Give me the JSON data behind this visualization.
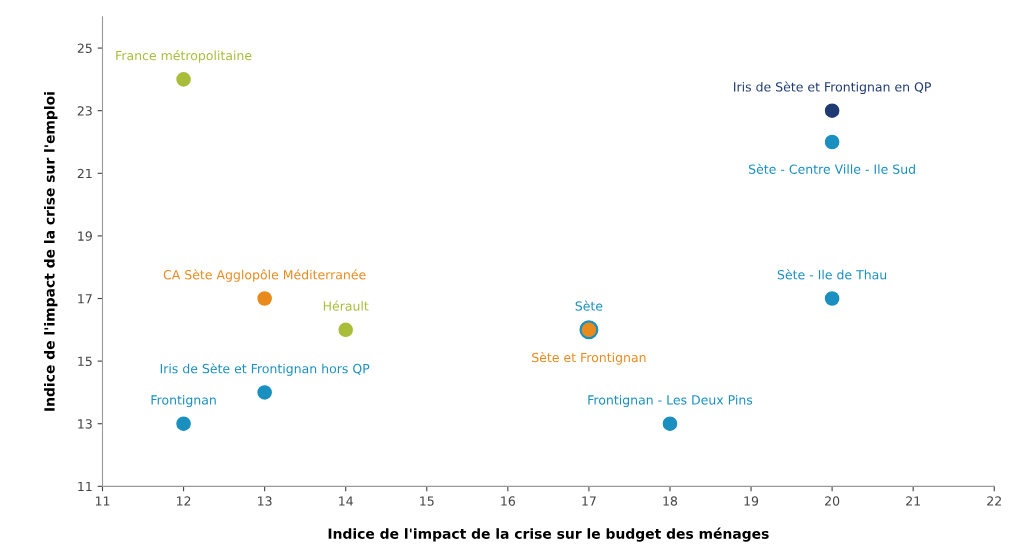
{
  "chart_data": {
    "type": "scatter",
    "xlabel": "Indice de l'impact de la crise sur le budget des ménages",
    "ylabel": "Indice de l'impact de la crise sur l'emploi",
    "xlim": [
      11,
      22
    ],
    "xticks": [
      11,
      12,
      13,
      14,
      15,
      16,
      17,
      18,
      19,
      20,
      21,
      22
    ],
    "ylim": [
      11,
      26
    ],
    "yticks": [
      11,
      13,
      15,
      17,
      19,
      21,
      23,
      25
    ],
    "grid": false,
    "legend": false,
    "marker": "circle",
    "series": [
      {
        "name": "France métropolitaine",
        "color": "#a9bd3a",
        "x": [
          12
        ],
        "values": [
          24
        ]
      },
      {
        "name": "Iris de Sète et Frontignan en QP",
        "color": "#1f3b73",
        "x": [
          20
        ],
        "values": [
          23
        ]
      },
      {
        "name": "Sète - Centre Ville - Ile Sud",
        "color": "#1a8fc0",
        "x": [
          20
        ],
        "values": [
          22
        ]
      },
      {
        "name": "CA Sète Agglopôle Méditerranée",
        "color": "#e98a1d",
        "x": [
          13
        ],
        "values": [
          17
        ]
      },
      {
        "name": "Hérault",
        "color": "#a9bd3a",
        "x": [
          14
        ],
        "values": [
          16
        ]
      },
      {
        "name": "Sète",
        "color": "#1a8fc0",
        "x": [
          17
        ],
        "values": [
          16
        ]
      },
      {
        "name": "Sète et Frontignan",
        "color": "#e98a1d",
        "x": [
          17
        ],
        "values": [
          16
        ]
      },
      {
        "name": "Sète - Ile de Thau",
        "color": "#1a8fc0",
        "x": [
          20
        ],
        "values": [
          17
        ]
      },
      {
        "name": "Iris de Sète et Frontignan hors QP",
        "color": "#1a8fc0",
        "x": [
          13
        ],
        "values": [
          14
        ]
      },
      {
        "name": "Frontignan",
        "color": "#1a8fc0",
        "x": [
          12
        ],
        "values": [
          13
        ]
      },
      {
        "name": "Frontignan - Les Deux Pins",
        "color": "#1a8fc0",
        "x": [
          18
        ],
        "values": [
          13
        ]
      }
    ]
  }
}
